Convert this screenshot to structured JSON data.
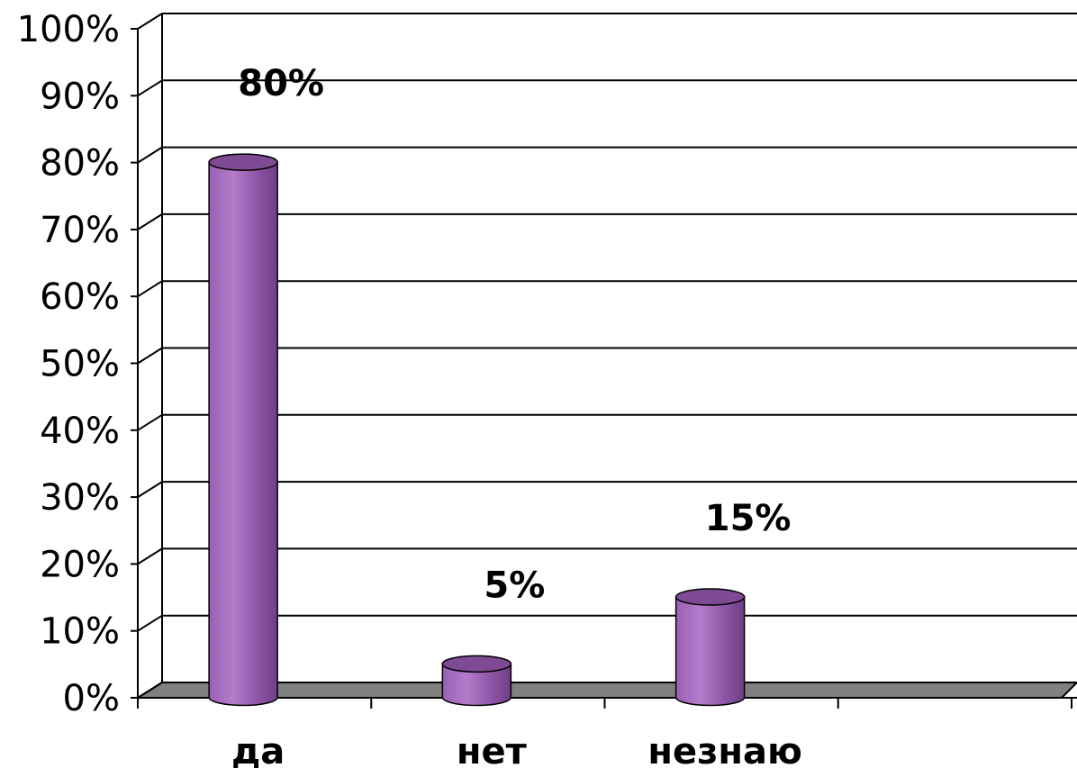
{
  "chart_data": {
    "type": "bar",
    "style": "3d-cylinder",
    "categories": [
      "да",
      "нет",
      "незнаю"
    ],
    "values": [
      80,
      5,
      15
    ],
    "data_labels": [
      "80%",
      "5%",
      "15%"
    ],
    "y_ticks": [
      "0%",
      "10%",
      "20%",
      "30%",
      "40%",
      "50%",
      "60%",
      "70%",
      "80%",
      "90%",
      "100%"
    ],
    "ylim": [
      0,
      100
    ],
    "grid": true,
    "legend": "none",
    "colors": {
      "bar": "#a066b8",
      "bar_dark": "#7d4a93",
      "floor": "#808080",
      "grid": "#000000"
    }
  }
}
